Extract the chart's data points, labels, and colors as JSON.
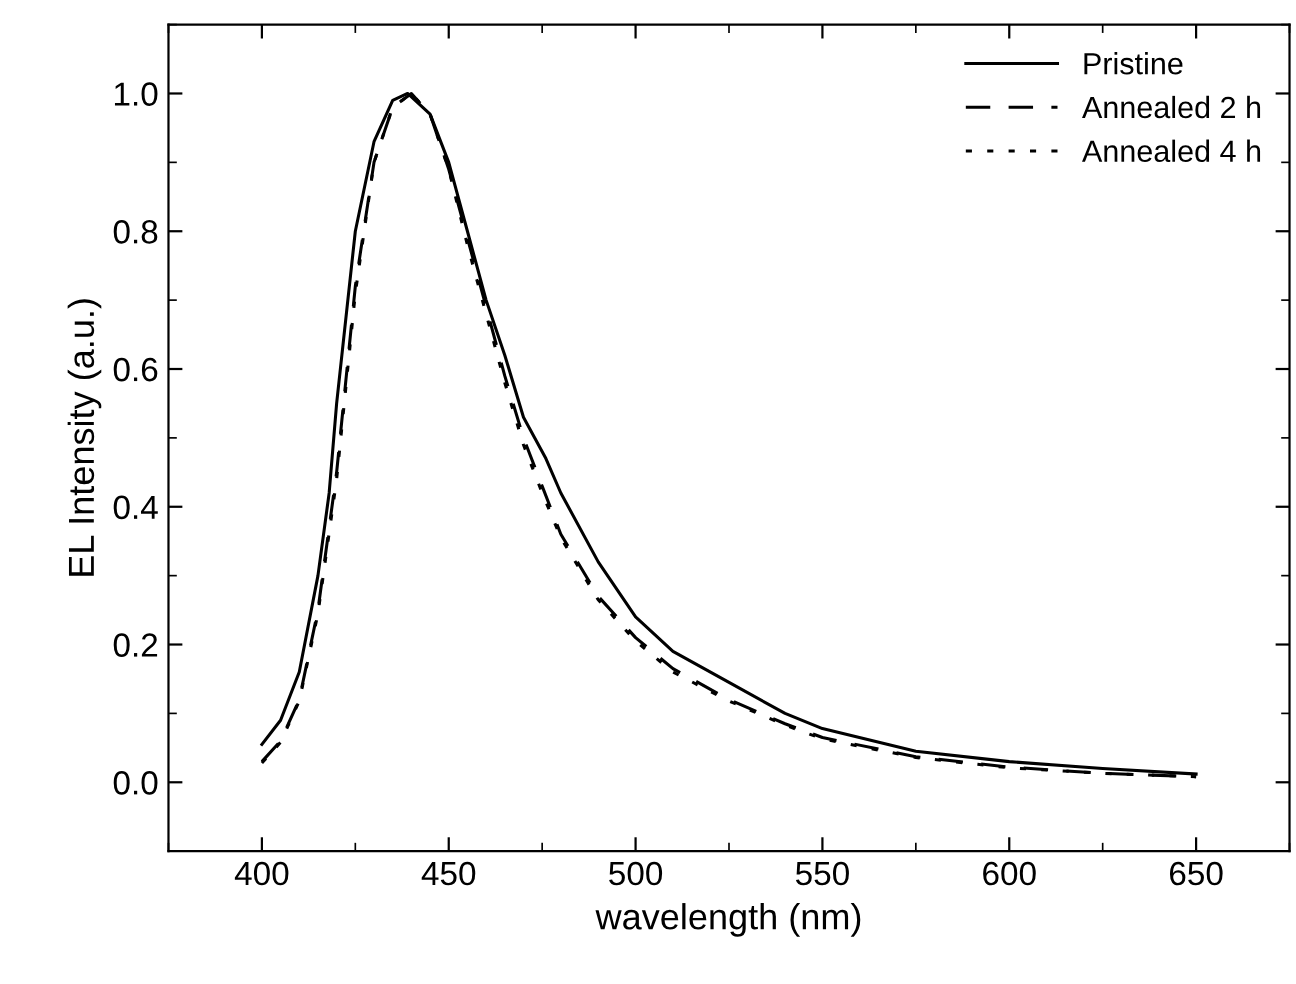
{
  "chart_data": {
    "type": "line",
    "xlabel": "wavelength (nm)",
    "ylabel": "EL Intensity (a.u.)",
    "xlim": [
      375,
      675
    ],
    "xticks": [
      400,
      450,
      500,
      550,
      600,
      650
    ],
    "ylim": [
      -0.1,
      1.1
    ],
    "yticks": [
      {
        "value": 0,
        "label": "0.0"
      },
      0.2,
      0.4,
      0.6,
      0.8,
      {
        "value": 1,
        "label": "1.0"
      }
    ],
    "grid": false,
    "legend": "top right",
    "marker": "none",
    "series": [
      {
        "name": "Pristine",
        "color": "#000000",
        "line_style": "solid",
        "x": [
          400,
          405,
          410,
          415,
          418,
          420,
          425,
          430,
          435,
          439,
          445,
          450,
          455,
          460,
          465,
          470,
          476,
          480,
          490,
          500,
          510,
          525,
          540,
          550,
          575,
          600,
          625,
          650
        ],
        "values": [
          0.055,
          0.09,
          0.16,
          0.3,
          0.42,
          0.55,
          0.8,
          0.93,
          0.99,
          1.0,
          0.97,
          0.9,
          0.8,
          0.7,
          0.62,
          0.53,
          0.47,
          0.42,
          0.32,
          0.24,
          0.19,
          0.145,
          0.1,
          0.078,
          0.045,
          0.03,
          0.02,
          0.012
        ]
      },
      {
        "name": "Annealed 2 h",
        "color": "#000000",
        "line_style": "dashed",
        "x": [
          400,
          405,
          410,
          415,
          420,
          425,
          430,
          435,
          440,
          445,
          450,
          455,
          460,
          465,
          470,
          475,
          480,
          490,
          500,
          510,
          525,
          540,
          550,
          575,
          600,
          625,
          650
        ],
        "values": [
          0.03,
          0.06,
          0.12,
          0.25,
          0.45,
          0.72,
          0.9,
          0.98,
          1.0,
          0.97,
          0.89,
          0.79,
          0.69,
          0.59,
          0.5,
          0.43,
          0.36,
          0.27,
          0.21,
          0.165,
          0.12,
          0.085,
          0.065,
          0.037,
          0.022,
          0.013,
          0.008
        ]
      },
      {
        "name": "Annealed 4 h",
        "color": "#000000",
        "line_style": "dotted",
        "x": [
          400,
          405,
          410,
          415,
          420,
          425,
          430,
          435,
          440,
          445,
          450,
          455,
          460,
          465,
          470,
          475,
          480,
          490,
          500,
          510,
          525,
          540,
          550,
          575,
          600,
          625,
          650
        ],
        "values": [
          0.028,
          0.058,
          0.118,
          0.245,
          0.44,
          0.71,
          0.9,
          0.98,
          1.0,
          0.97,
          0.89,
          0.78,
          0.68,
          0.58,
          0.49,
          0.42,
          0.355,
          0.265,
          0.205,
          0.16,
          0.118,
          0.083,
          0.063,
          0.036,
          0.021,
          0.013,
          0.008
        ]
      }
    ]
  }
}
